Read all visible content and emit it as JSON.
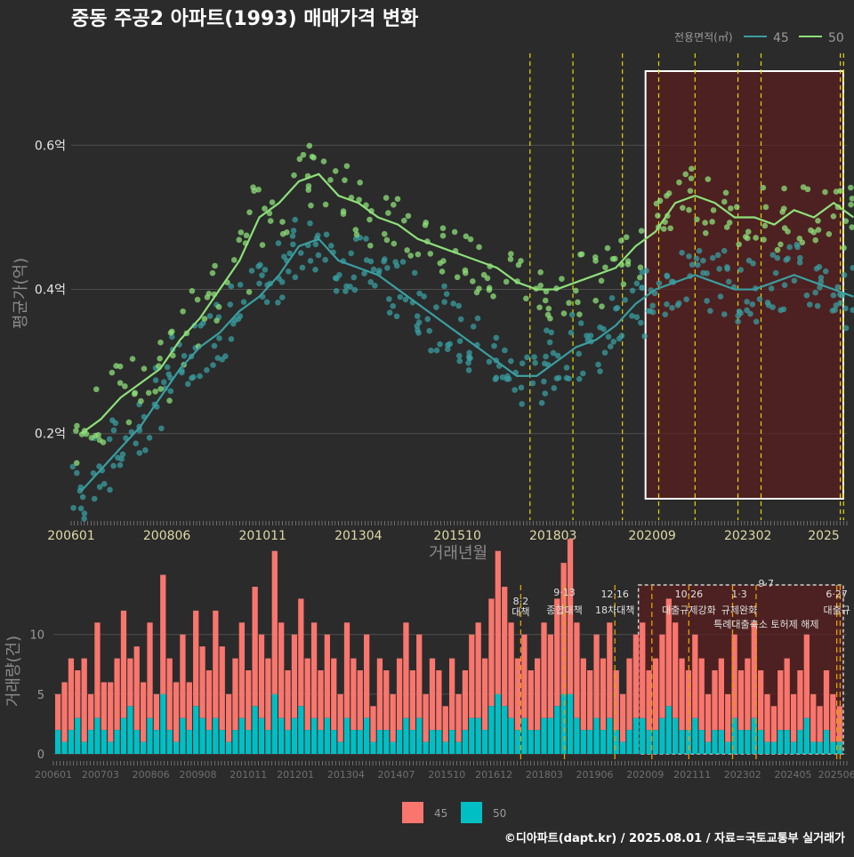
{
  "title": "중동 주공2 아파트(1993) 매매가격 변화",
  "credit": "©디아파트(dapt.kr) / 2025.08.01 / 자료=국토교통부 실거래가",
  "colors": {
    "background": "#2b2b2b",
    "series45": "#3a9ea0",
    "series50": "#8ee07a",
    "bar45": "#f8766d",
    "bar50": "#00bfc4",
    "policy_line": "#e6d800",
    "policy_line_bottom": "#e6a000",
    "highlight_fill": "#5a1f1f",
    "grid": "#4e4e4e",
    "text_light": "#e6e6e6",
    "text_muted": "#9a9a9a",
    "tick_label": "#e0d9a6"
  },
  "chart_data": [
    {
      "type": "line",
      "title": "중동 주공2 아파트(1993) 매매가격 변화",
      "xlabel": "거래년월",
      "ylabel": "평균가(억)",
      "x_tick_labels": [
        "200601",
        "200806",
        "201011",
        "201304",
        "201510",
        "201803",
        "202009",
        "202302",
        "2025"
      ],
      "y_ticks": [
        0.2,
        0.4,
        0.6
      ],
      "y_tick_labels": [
        "0.2억",
        "0.4억",
        "0.6억"
      ],
      "ylim": [
        0.08,
        0.73
      ],
      "xlim": [
        "2006-01",
        "2025-08"
      ],
      "grid": true,
      "legend_title": "전용면적(㎡)",
      "legend_position": "top-right",
      "series": [
        {
          "name": "45",
          "x": [
            "2006-01",
            "2006-07",
            "2007-01",
            "2007-07",
            "2008-01",
            "2008-07",
            "2009-01",
            "2009-07",
            "2010-01",
            "2010-07",
            "2011-01",
            "2011-07",
            "2012-01",
            "2012-07",
            "2013-01",
            "2013-07",
            "2014-01",
            "2014-07",
            "2015-01",
            "2015-07",
            "2016-01",
            "2016-07",
            "2017-01",
            "2017-07",
            "2018-01",
            "2018-07",
            "2019-01",
            "2019-07",
            "2020-01",
            "2020-07",
            "2021-01",
            "2021-07",
            "2022-01",
            "2022-07",
            "2023-01",
            "2023-07",
            "2024-01",
            "2024-07",
            "2025-01",
            "2025-07"
          ],
          "values": [
            0.12,
            0.15,
            0.18,
            0.21,
            0.25,
            0.29,
            0.32,
            0.34,
            0.37,
            0.39,
            0.42,
            0.46,
            0.47,
            0.44,
            0.43,
            0.42,
            0.4,
            0.38,
            0.36,
            0.34,
            0.32,
            0.3,
            0.28,
            0.28,
            0.3,
            0.32,
            0.33,
            0.35,
            0.38,
            0.4,
            0.41,
            0.42,
            0.41,
            0.4,
            0.4,
            0.41,
            0.42,
            0.41,
            0.4,
            0.39
          ]
        },
        {
          "name": "50",
          "x": [
            "2006-01",
            "2006-07",
            "2007-01",
            "2007-07",
            "2008-01",
            "2008-07",
            "2009-01",
            "2009-07",
            "2010-01",
            "2010-07",
            "2011-01",
            "2011-07",
            "2012-01",
            "2012-07",
            "2013-01",
            "2013-07",
            "2014-01",
            "2014-07",
            "2015-01",
            "2015-07",
            "2016-01",
            "2016-07",
            "2017-01",
            "2017-07",
            "2018-01",
            "2018-07",
            "2019-01",
            "2019-07",
            "2020-01",
            "2020-07",
            "2021-01",
            "2021-07",
            "2022-01",
            "2022-07",
            "2023-01",
            "2023-07",
            "2024-01",
            "2024-07",
            "2025-01",
            "2025-07"
          ],
          "values": [
            0.2,
            0.22,
            0.25,
            0.27,
            0.29,
            0.33,
            0.36,
            0.4,
            0.44,
            0.5,
            0.52,
            0.55,
            0.56,
            0.53,
            0.52,
            0.5,
            0.49,
            0.47,
            0.46,
            0.45,
            0.44,
            0.43,
            0.41,
            0.4,
            0.4,
            0.41,
            0.42,
            0.43,
            0.46,
            0.48,
            0.52,
            0.53,
            0.52,
            0.5,
            0.5,
            0.49,
            0.51,
            0.5,
            0.52,
            0.5
          ]
        }
      ],
      "policy_lines_x": [
        "2017-08",
        "2018-09",
        "2019-12",
        "2020-11",
        "2021-10",
        "2022-11",
        "2023-06",
        "2025-06",
        "2025-07"
      ],
      "highlight_range": [
        "2020-07",
        "2025-08"
      ]
    },
    {
      "type": "bar",
      "ylabel": "거래량(건)",
      "y_ticks": [
        0,
        5,
        10
      ],
      "ylim": [
        0,
        14
      ],
      "x_tick_labels": [
        "200601",
        "200703",
        "200806",
        "200908",
        "201011",
        "201201",
        "201304",
        "201407",
        "201510",
        "201612",
        "201803",
        "201906",
        "202009",
        "202111",
        "202302",
        "202405",
        "202506"
      ],
      "legend_position": "bottom",
      "series": [
        {
          "name": "45",
          "values": [
            3,
            5,
            6,
            4,
            7,
            3,
            8,
            4,
            5,
            6,
            9,
            4,
            7,
            5,
            8,
            3,
            10,
            6,
            5,
            7,
            4,
            8,
            6,
            5,
            9,
            7,
            4,
            6,
            8,
            5,
            10,
            7,
            6,
            12,
            8,
            5,
            7,
            9,
            6,
            8,
            5,
            7,
            6,
            4,
            8,
            6,
            5,
            7,
            3,
            6,
            5,
            4,
            6,
            8,
            5,
            7,
            4,
            6,
            5,
            3,
            6,
            4,
            5,
            7,
            8,
            6,
            9,
            12,
            10,
            8,
            6,
            7,
            5,
            6,
            8,
            7,
            9,
            11,
            13,
            8,
            6,
            5,
            7,
            6,
            8,
            5,
            4,
            6,
            7,
            8,
            5,
            6,
            7,
            9,
            8,
            6,
            5,
            7,
            6,
            4,
            5,
            6,
            4,
            7,
            5,
            6,
            8,
            5,
            4,
            3,
            5,
            6,
            4,
            5,
            7,
            4,
            3,
            5,
            4,
            3
          ]
        },
        {
          "name": "50",
          "values": [
            2,
            1,
            2,
            3,
            1,
            2,
            3,
            2,
            1,
            2,
            3,
            4,
            2,
            1,
            3,
            2,
            5,
            2,
            1,
            3,
            2,
            4,
            3,
            2,
            3,
            2,
            1,
            2,
            3,
            2,
            4,
            3,
            2,
            5,
            3,
            2,
            3,
            4,
            2,
            3,
            2,
            3,
            2,
            1,
            3,
            2,
            2,
            3,
            1,
            2,
            2,
            1,
            2,
            3,
            2,
            3,
            1,
            2,
            2,
            1,
            2,
            1,
            2,
            3,
            3,
            2,
            4,
            5,
            4,
            3,
            2,
            3,
            2,
            2,
            3,
            3,
            4,
            5,
            5,
            3,
            2,
            2,
            3,
            2,
            3,
            2,
            1,
            2,
            3,
            3,
            2,
            2,
            3,
            4,
            3,
            2,
            2,
            3,
            2,
            1,
            2,
            2,
            1,
            3,
            2,
            2,
            3,
            2,
            1,
            1,
            2,
            2,
            1,
            2,
            3,
            1,
            1,
            2,
            1,
            1
          ]
        }
      ],
      "policy_labels": [
        {
          "date": "8·2",
          "name": "대책",
          "x": "2017-08"
        },
        {
          "date": "9·13",
          "name": "종합대책",
          "x": "2018-09"
        },
        {
          "date": "12·16",
          "name": "18차대책",
          "x": "2019-12"
        },
        {
          "date": "10·26",
          "name": "대출규제강화",
          "x": "2021-10"
        },
        {
          "date": "1·3",
          "name": "규제완화",
          "x": "2023-01"
        },
        {
          "date": "9·7",
          "name": "특례대출축소 토허제 해제",
          "x": "2023-09"
        },
        {
          "date": "6·27",
          "name": "대출규",
          "x": "2025-06"
        }
      ]
    }
  ]
}
